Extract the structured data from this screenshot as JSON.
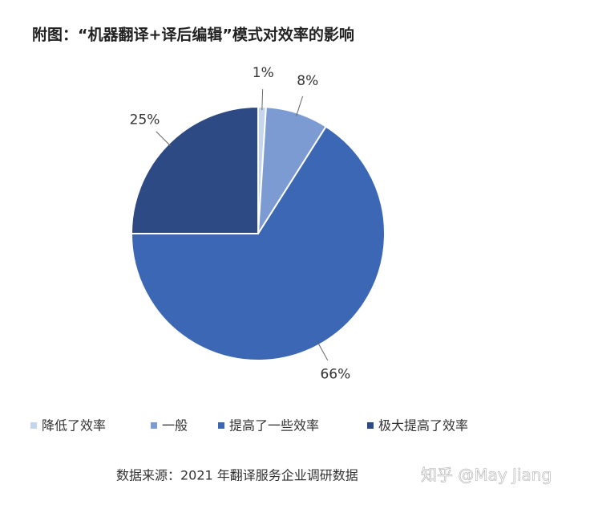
{
  "chart_data": {
    "type": "pie",
    "title": "附图：“机器翻译+译后编辑”模式对效率的影响",
    "categories": [
      "降低了效率",
      "一般",
      "提高了一些效率",
      "极大提高了效率"
    ],
    "values": [
      1,
      8,
      66,
      25
    ],
    "value_labels": [
      "1%",
      "8%",
      "66%",
      "25%"
    ],
    "colors": [
      "#c5d5ec",
      "#7b9bd2",
      "#3b67b5",
      "#2d4a85"
    ],
    "source": "数据来源：2021 年翻译服务企业调研数据",
    "watermark": "知乎 @May Jiang"
  }
}
